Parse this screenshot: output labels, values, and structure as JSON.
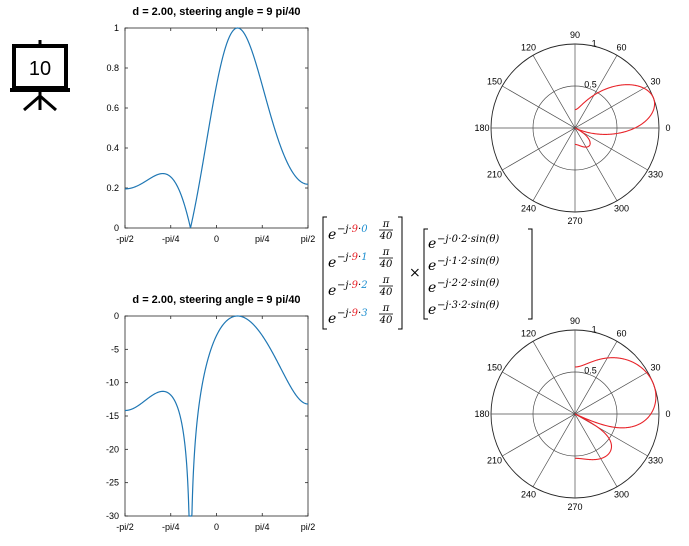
{
  "icon": {
    "slide_number": "10",
    "name": "presentation-board-icon"
  },
  "chart_data": [
    {
      "type": "line",
      "title": "d = 2.00, steering angle  = 9 pi/40",
      "xticks": [
        "-pi/2",
        "-pi/4",
        "0",
        "pi/4",
        "pi/2"
      ],
      "yticks": [
        "0",
        "0.2",
        "0.4",
        "0.6",
        "0.8",
        "1"
      ],
      "xlim": [
        -1.5708,
        1.5708
      ],
      "ylim": [
        0,
        1
      ],
      "series": [
        {
          "color": "#1f77b4",
          "kind": "linear"
        }
      ]
    },
    {
      "type": "line",
      "title": "d = 2.00, steering angle  = 9 pi/40",
      "xticks": [
        "-pi/2",
        "-pi/4",
        "0",
        "pi/4",
        "pi/2"
      ],
      "yticks": [
        "-30",
        "-25",
        "-20",
        "-15",
        "-10",
        "-5",
        "0"
      ],
      "xlim": [
        -1.5708,
        1.5708
      ],
      "ylim": [
        -30,
        0
      ],
      "series": [
        {
          "color": "#1f77b4",
          "kind": "db"
        }
      ]
    },
    {
      "type": "polar",
      "angle_labels": [
        "90",
        "60",
        "30",
        "0",
        "330",
        "300",
        "270",
        "240",
        "210",
        "180",
        "150",
        "120"
      ],
      "radial_labels": [
        "0.5",
        "1"
      ],
      "rlim": [
        0,
        1
      ],
      "series": [
        {
          "color": "#e8242a",
          "kind": "linear"
        }
      ]
    },
    {
      "type": "polar",
      "angle_labels": [
        "90",
        "60",
        "30",
        "0",
        "330",
        "300",
        "270",
        "240",
        "210",
        "180",
        "150",
        "120"
      ],
      "radial_labels": [
        "0.5",
        "1"
      ],
      "rlim": [
        0,
        1
      ],
      "series": [
        {
          "color": "#e8242a",
          "kind": "db"
        }
      ]
    }
  ],
  "equation": {
    "colors": {
      "n": "#e8242a",
      "k": "#1f8fd0"
    },
    "left": [
      {
        "base": "e",
        "minus_j": "−j·",
        "n": "9",
        "dot": "·",
        "k": "0",
        "frac_num": "π",
        "frac_den": "40"
      },
      {
        "base": "e",
        "minus_j": "−j·",
        "n": "9",
        "dot": "·",
        "k": "1",
        "frac_num": "π",
        "frac_den": "40"
      },
      {
        "base": "e",
        "minus_j": "−j·",
        "n": "9",
        "dot": "·",
        "k": "2",
        "frac_num": "π",
        "frac_den": "40"
      },
      {
        "base": "e",
        "minus_j": "−j·",
        "n": "9",
        "dot": "·",
        "k": "3",
        "frac_num": "π",
        "frac_den": "40"
      }
    ],
    "times": "×",
    "right": [
      {
        "base": "e",
        "exp": "−j·0·2·sin(θ)"
      },
      {
        "base": "e",
        "exp": "−j·1·2·sin(θ)"
      },
      {
        "base": "e",
        "exp": "−j·2·2·sin(θ)"
      },
      {
        "base": "e",
        "exp": "−j·3·2·sin(θ)"
      }
    ]
  }
}
